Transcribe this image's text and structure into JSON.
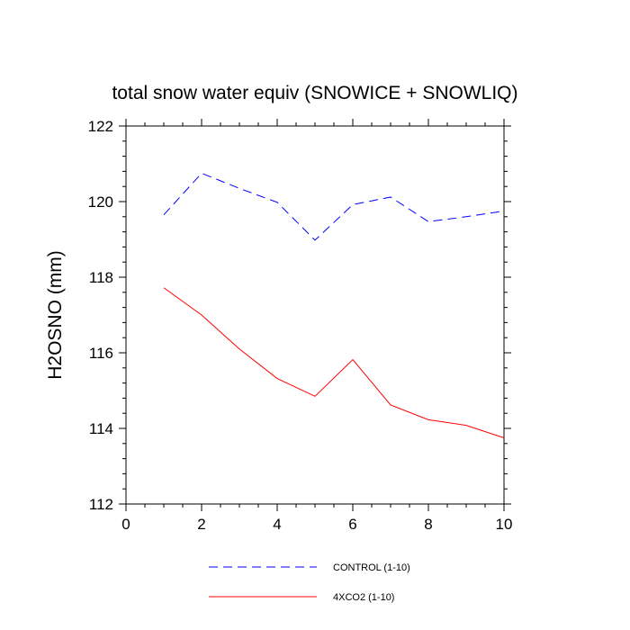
{
  "chart_data": {
    "type": "line",
    "title": "total snow water equiv (SNOWICE + SNOWLIQ)",
    "xlabel": "",
    "ylabel": "H2OSNO  (mm)",
    "xlim": [
      0,
      10
    ],
    "ylim": [
      112,
      122
    ],
    "x_ticks": [
      0,
      2,
      4,
      6,
      8,
      10
    ],
    "y_ticks": [
      112,
      114,
      116,
      118,
      120,
      122
    ],
    "x_tick_labels": [
      "0",
      "2",
      "4",
      "6",
      "8",
      "10"
    ],
    "y_tick_labels": [
      "112",
      "114",
      "116",
      "118",
      "120",
      "122"
    ],
    "x": [
      1,
      2,
      3,
      4,
      5,
      6,
      7,
      8,
      9,
      10
    ],
    "series": [
      {
        "name": "CONTROL (1-10)",
        "color": "#0000ff",
        "dash": "dashed",
        "values": [
          119.65,
          120.75,
          120.35,
          119.98,
          118.98,
          119.92,
          120.12,
          119.47,
          119.6,
          119.75
        ]
      },
      {
        "name": "4XCO2 (1-10)",
        "color": "#ff0000",
        "dash": "solid",
        "values": [
          117.72,
          117.0,
          116.1,
          115.32,
          114.85,
          115.82,
          114.62,
          114.23,
          114.08,
          113.75
        ]
      }
    ],
    "legend_position": "bottom"
  }
}
